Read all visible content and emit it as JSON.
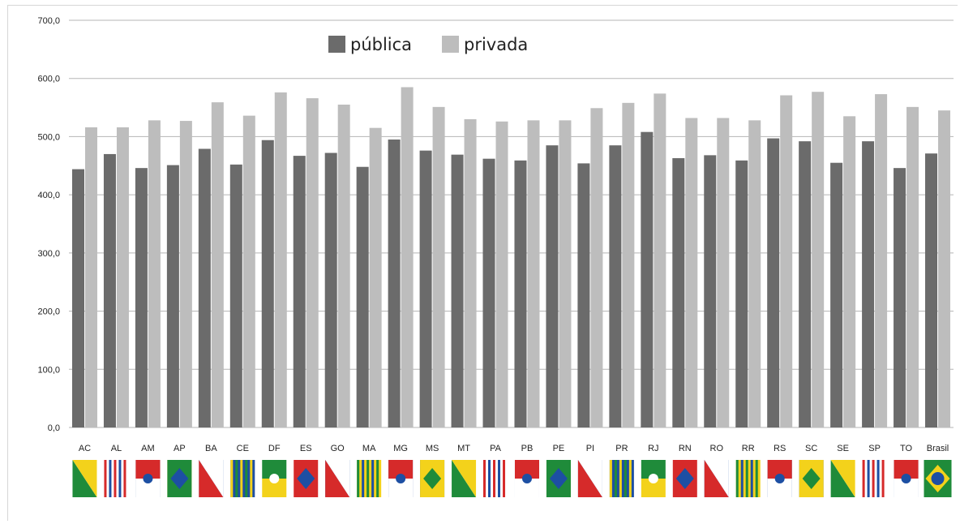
{
  "colors": {
    "publica": "#6b6b6b",
    "privada": "#bdbdbd",
    "grid": "#b5b5b5"
  },
  "chart_data": {
    "type": "bar",
    "title": "",
    "xlabel": "",
    "ylabel": "",
    "ylim": [
      0,
      700
    ],
    "y_ticks": [
      "0,0",
      "100,0",
      "200,0",
      "300,0",
      "400,0",
      "500,0",
      "600,0",
      "700,0"
    ],
    "grid": true,
    "legend_position": "top-center",
    "categories": [
      "AC",
      "AL",
      "AM",
      "AP",
      "BA",
      "CE",
      "DF",
      "ES",
      "GO",
      "MA",
      "MG",
      "MS",
      "MT",
      "PA",
      "PB",
      "PE",
      "PI",
      "PR",
      "RJ",
      "RN",
      "RO",
      "RR",
      "RS",
      "SC",
      "SE",
      "SP",
      "TO",
      "Brasil"
    ],
    "series": [
      {
        "name": "pública",
        "values": [
          444,
          470,
          446,
          451,
          479,
          452,
          494,
          467,
          472,
          448,
          495,
          476,
          469,
          462,
          459,
          485,
          454,
          485,
          508,
          463,
          468,
          459,
          497,
          492,
          455,
          492,
          446,
          471
        ]
      },
      {
        "name": "privada",
        "values": [
          516,
          516,
          528,
          527,
          559,
          536,
          576,
          566,
          555,
          515,
          585,
          551,
          530,
          526,
          528,
          528,
          549,
          558,
          574,
          532,
          532,
          528,
          571,
          577,
          535,
          573,
          551,
          545
        ]
      }
    ]
  }
}
